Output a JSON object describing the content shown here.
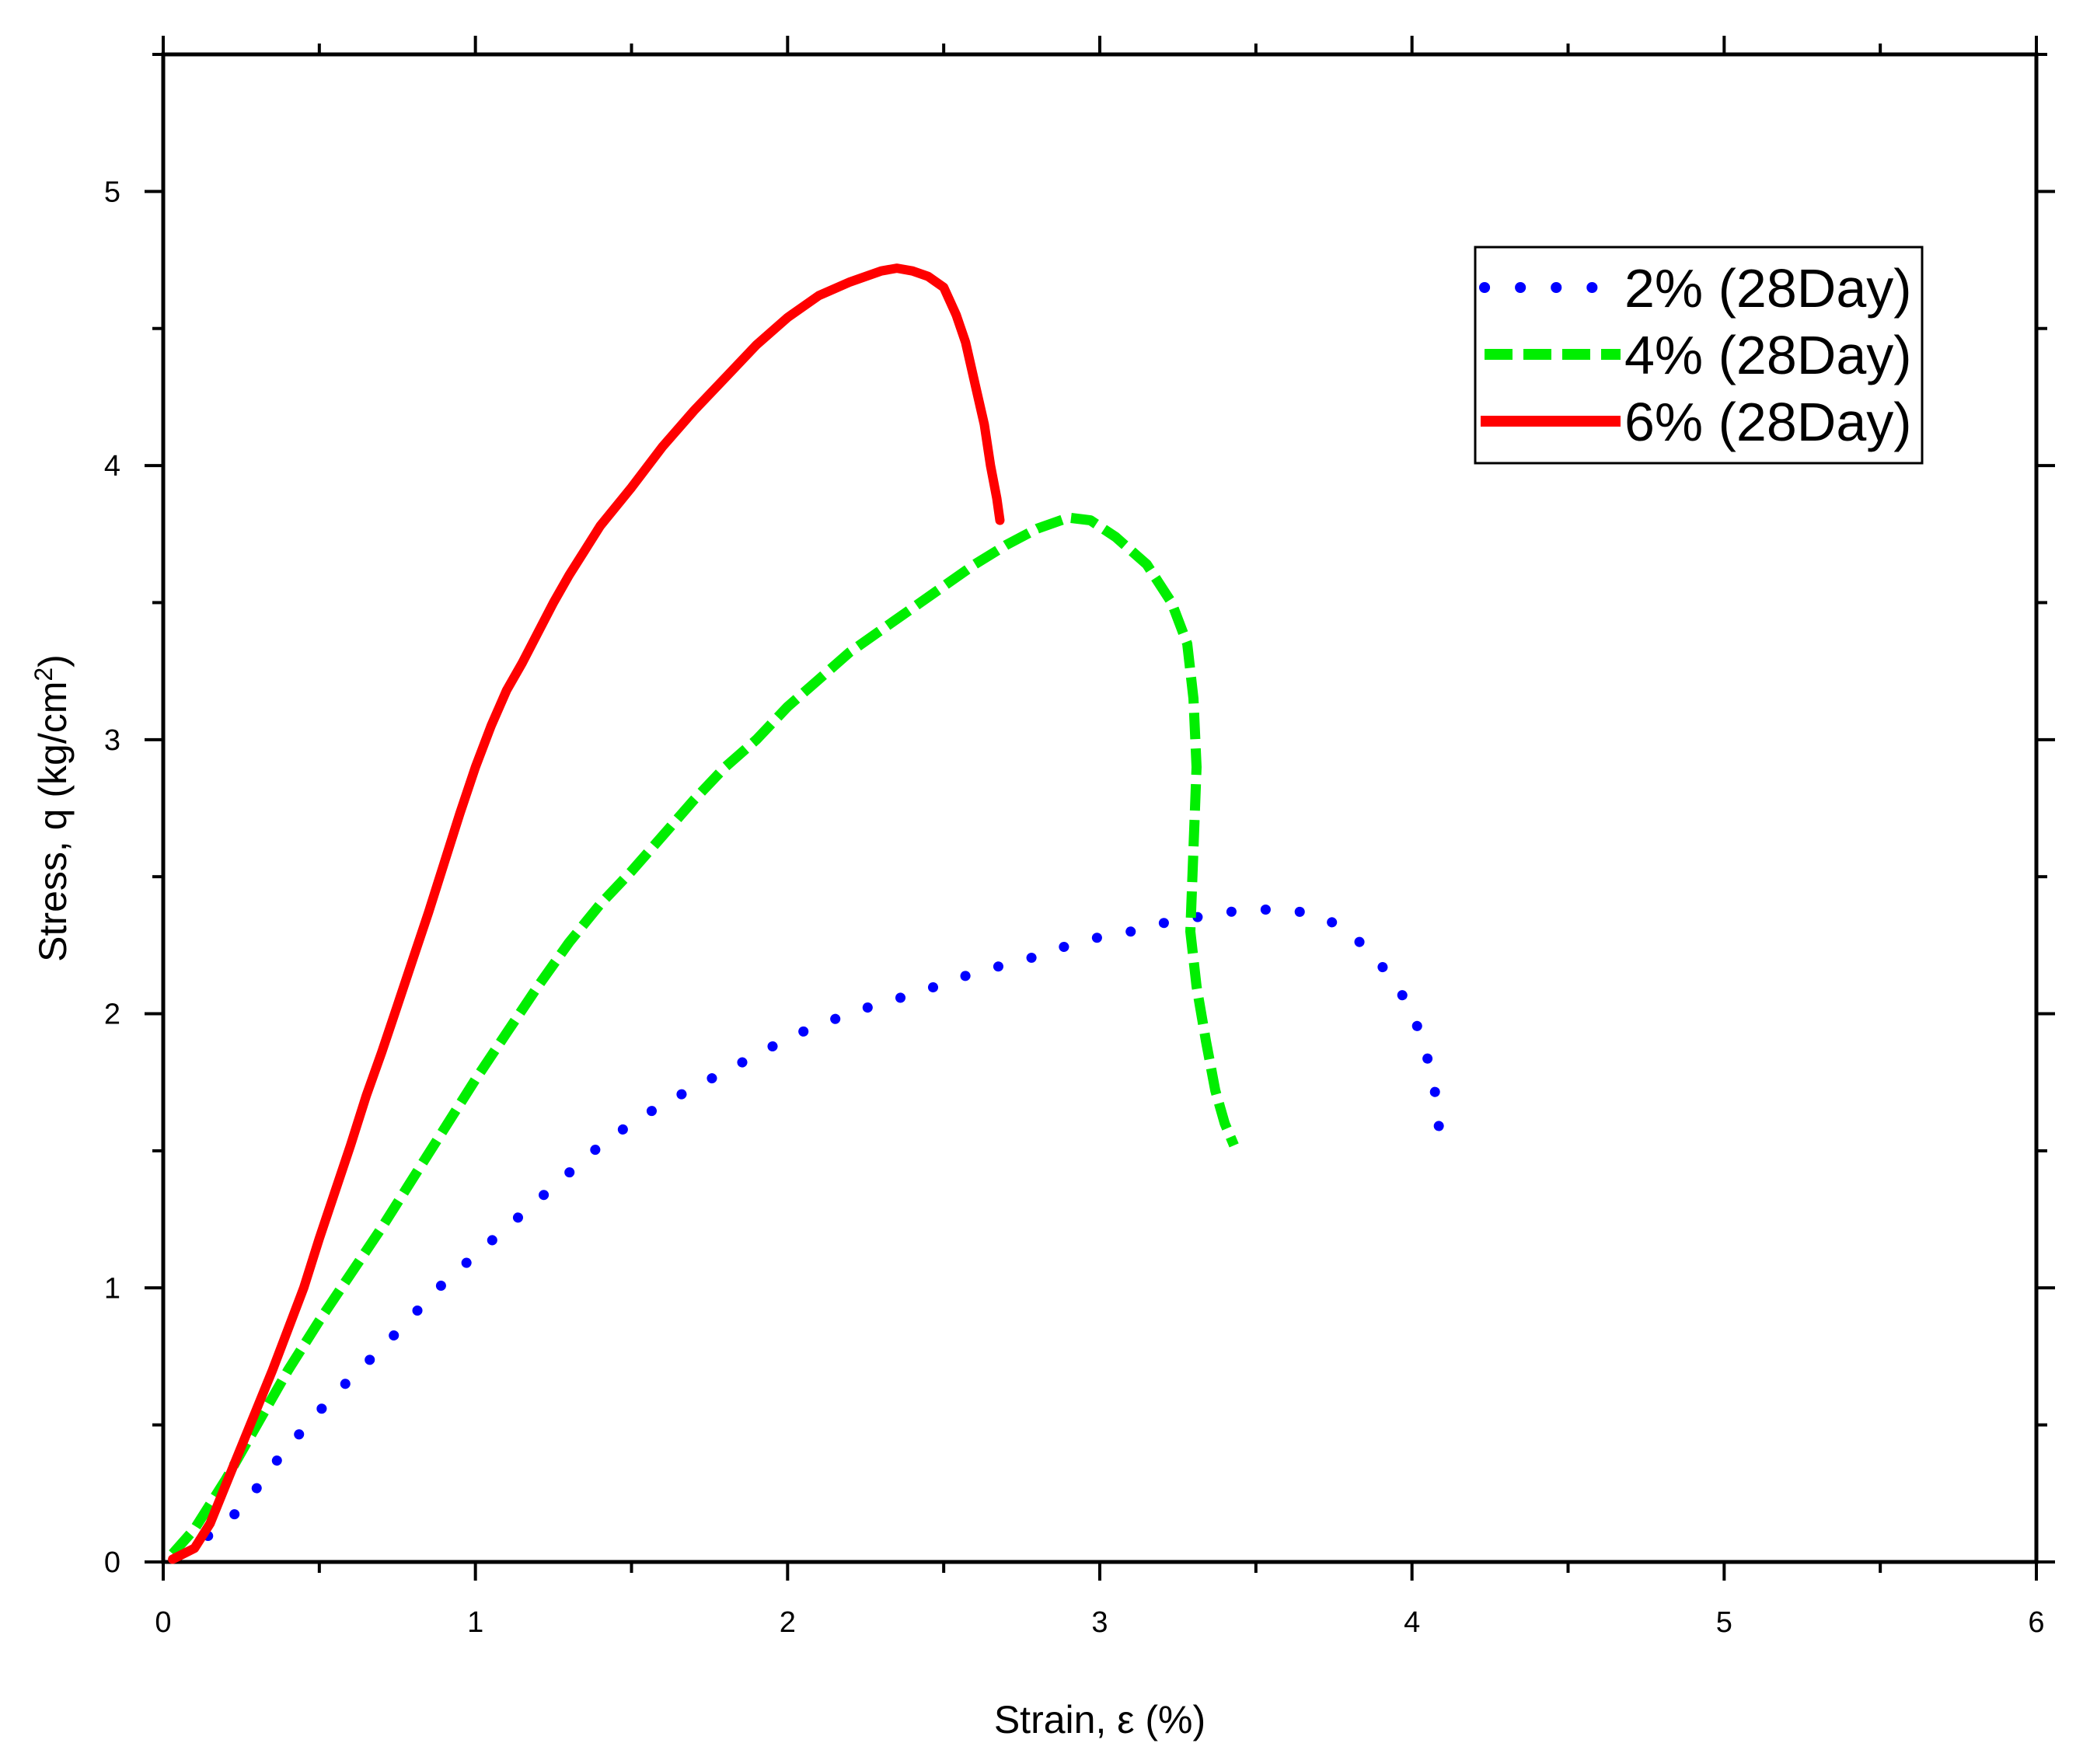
{
  "chart_data": {
    "type": "line",
    "title": "",
    "xlabel": "Strain, ε (%)",
    "ylabel_parts": {
      "pre": "Stress, q (kg/cm",
      "sup": "2",
      "post": ")"
    },
    "xlim": [
      0,
      6
    ],
    "ylim": [
      0,
      5.5
    ],
    "xticks": [
      0,
      1,
      2,
      3,
      4,
      5,
      6
    ],
    "yticks": [
      0,
      1,
      2,
      3,
      4,
      5
    ],
    "grid": false,
    "legend_position": "top-right",
    "series": [
      {
        "name": "2% (28Day)",
        "color": "#0000ff",
        "style": "dotted",
        "points": [
          [
            0.05,
            0.03
          ],
          [
            0.1,
            0.06
          ],
          [
            0.15,
            0.1
          ],
          [
            0.2,
            0.14
          ],
          [
            0.25,
            0.2
          ],
          [
            0.3,
            0.27
          ],
          [
            0.35,
            0.35
          ],
          [
            0.4,
            0.42
          ],
          [
            0.5,
            0.55
          ],
          [
            0.6,
            0.67
          ],
          [
            0.7,
            0.78
          ],
          [
            0.8,
            0.9
          ],
          [
            0.9,
            1.02
          ],
          [
            1.0,
            1.12
          ],
          [
            1.1,
            1.22
          ],
          [
            1.2,
            1.32
          ],
          [
            1.3,
            1.42
          ],
          [
            1.4,
            1.52
          ],
          [
            1.5,
            1.6
          ],
          [
            1.6,
            1.67
          ],
          [
            1.7,
            1.73
          ],
          [
            1.8,
            1.79
          ],
          [
            1.9,
            1.85
          ],
          [
            2.0,
            1.91
          ],
          [
            2.1,
            1.96
          ],
          [
            2.2,
            2.0
          ],
          [
            2.3,
            2.04
          ],
          [
            2.4,
            2.07
          ],
          [
            2.5,
            2.11
          ],
          [
            2.6,
            2.15
          ],
          [
            2.7,
            2.18
          ],
          [
            2.8,
            2.21
          ],
          [
            2.9,
            2.25
          ],
          [
            3.0,
            2.28
          ],
          [
            3.1,
            2.3
          ],
          [
            3.2,
            2.33
          ],
          [
            3.3,
            2.35
          ],
          [
            3.4,
            2.37
          ],
          [
            3.5,
            2.38
          ],
          [
            3.6,
            2.38
          ],
          [
            3.7,
            2.36
          ],
          [
            3.8,
            2.3
          ],
          [
            3.9,
            2.18
          ],
          [
            3.98,
            2.05
          ],
          [
            4.03,
            1.92
          ],
          [
            4.07,
            1.75
          ],
          [
            4.09,
            1.55
          ]
        ]
      },
      {
        "name": "4% (28Day)",
        "color": "#00ee00",
        "style": "dashed",
        "points": [
          [
            0.03,
            0.03
          ],
          [
            0.1,
            0.12
          ],
          [
            0.2,
            0.3
          ],
          [
            0.3,
            0.5
          ],
          [
            0.4,
            0.7
          ],
          [
            0.5,
            0.88
          ],
          [
            0.6,
            1.05
          ],
          [
            0.7,
            1.22
          ],
          [
            0.8,
            1.4
          ],
          [
            0.9,
            1.58
          ],
          [
            1.0,
            1.76
          ],
          [
            1.1,
            1.93
          ],
          [
            1.2,
            2.1
          ],
          [
            1.3,
            2.26
          ],
          [
            1.4,
            2.4
          ],
          [
            1.5,
            2.52
          ],
          [
            1.6,
            2.65
          ],
          [
            1.7,
            2.78
          ],
          [
            1.8,
            2.9
          ],
          [
            1.9,
            3.0
          ],
          [
            2.0,
            3.12
          ],
          [
            2.1,
            3.22
          ],
          [
            2.2,
            3.32
          ],
          [
            2.3,
            3.4
          ],
          [
            2.4,
            3.48
          ],
          [
            2.5,
            3.56
          ],
          [
            2.6,
            3.64
          ],
          [
            2.7,
            3.71
          ],
          [
            2.8,
            3.77
          ],
          [
            2.9,
            3.81
          ],
          [
            2.97,
            3.8
          ],
          [
            3.05,
            3.74
          ],
          [
            3.15,
            3.64
          ],
          [
            3.23,
            3.5
          ],
          [
            3.28,
            3.35
          ],
          [
            3.3,
            3.15
          ],
          [
            3.31,
            2.9
          ],
          [
            3.3,
            2.6
          ],
          [
            3.29,
            2.3
          ],
          [
            3.31,
            2.1
          ],
          [
            3.34,
            1.9
          ],
          [
            3.37,
            1.72
          ],
          [
            3.4,
            1.6
          ],
          [
            3.43,
            1.52
          ]
        ]
      },
      {
        "name": "6% (28Day)",
        "color": "#ff0000",
        "style": "solid",
        "points": [
          [
            0.03,
            0.01
          ],
          [
            0.1,
            0.05
          ],
          [
            0.15,
            0.14
          ],
          [
            0.2,
            0.28
          ],
          [
            0.25,
            0.42
          ],
          [
            0.3,
            0.56
          ],
          [
            0.35,
            0.7
          ],
          [
            0.4,
            0.85
          ],
          [
            0.45,
            1.0
          ],
          [
            0.5,
            1.18
          ],
          [
            0.55,
            1.35
          ],
          [
            0.6,
            1.52
          ],
          [
            0.65,
            1.7
          ],
          [
            0.7,
            1.86
          ],
          [
            0.75,
            2.03
          ],
          [
            0.8,
            2.2
          ],
          [
            0.85,
            2.37
          ],
          [
            0.9,
            2.55
          ],
          [
            0.95,
            2.73
          ],
          [
            1.0,
            2.9
          ],
          [
            1.05,
            3.05
          ],
          [
            1.1,
            3.18
          ],
          [
            1.15,
            3.28
          ],
          [
            1.2,
            3.39
          ],
          [
            1.25,
            3.5
          ],
          [
            1.3,
            3.6
          ],
          [
            1.35,
            3.69
          ],
          [
            1.4,
            3.78
          ],
          [
            1.5,
            3.92
          ],
          [
            1.6,
            4.07
          ],
          [
            1.7,
            4.2
          ],
          [
            1.8,
            4.32
          ],
          [
            1.9,
            4.44
          ],
          [
            2.0,
            4.54
          ],
          [
            2.1,
            4.62
          ],
          [
            2.2,
            4.67
          ],
          [
            2.3,
            4.71
          ],
          [
            2.35,
            4.72
          ],
          [
            2.4,
            4.71
          ],
          [
            2.45,
            4.69
          ],
          [
            2.5,
            4.65
          ],
          [
            2.54,
            4.55
          ],
          [
            2.57,
            4.45
          ],
          [
            2.6,
            4.3
          ],
          [
            2.63,
            4.15
          ],
          [
            2.65,
            4.0
          ],
          [
            2.67,
            3.88
          ],
          [
            2.68,
            3.8
          ]
        ]
      }
    ]
  }
}
